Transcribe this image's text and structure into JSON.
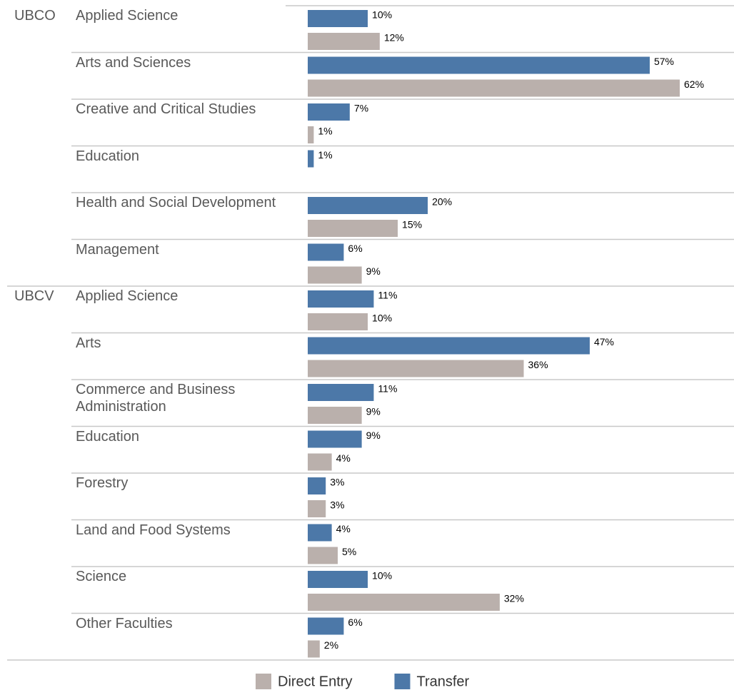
{
  "chart_data": {
    "type": "bar",
    "orientation": "horizontal",
    "group_labels": [
      "UBCO",
      null,
      null,
      null,
      null,
      null,
      "UBCV",
      null,
      null,
      null,
      null,
      null,
      null,
      null
    ],
    "categories": [
      "Applied Science",
      "Arts and Sciences",
      "Creative and Critical Studies",
      "Education",
      "Health and Social Development",
      "Management",
      "Applied Science",
      "Arts",
      "Commerce and Business Administration",
      "Education",
      "Forestry",
      "Land and Food Systems",
      "Science",
      "Other Faculties"
    ],
    "series": [
      {
        "name": "Transfer",
        "color": "#4c78a8",
        "values": [
          10,
          57,
          7,
          1,
          20,
          6,
          11,
          47,
          11,
          9,
          3,
          4,
          10,
          6
        ],
        "value_labels": [
          "10%",
          "57%",
          "7%",
          "1%",
          "20%",
          "6%",
          "11%",
          "47%",
          "11%",
          "9%",
          "3%",
          "4%",
          "10%",
          "6%"
        ]
      },
      {
        "name": "Direct Entry",
        "color": "#bab0ac",
        "values": [
          12,
          62,
          1,
          null,
          15,
          9,
          10,
          36,
          9,
          4,
          3,
          5,
          32,
          2
        ],
        "value_labels": [
          "12%",
          "62%",
          "1%",
          null,
          "15%",
          "9%",
          "10%",
          "36%",
          "9%",
          "4%",
          "3%",
          "5%",
          "32%",
          "2%"
        ]
      }
    ],
    "legend": "bottom"
  }
}
